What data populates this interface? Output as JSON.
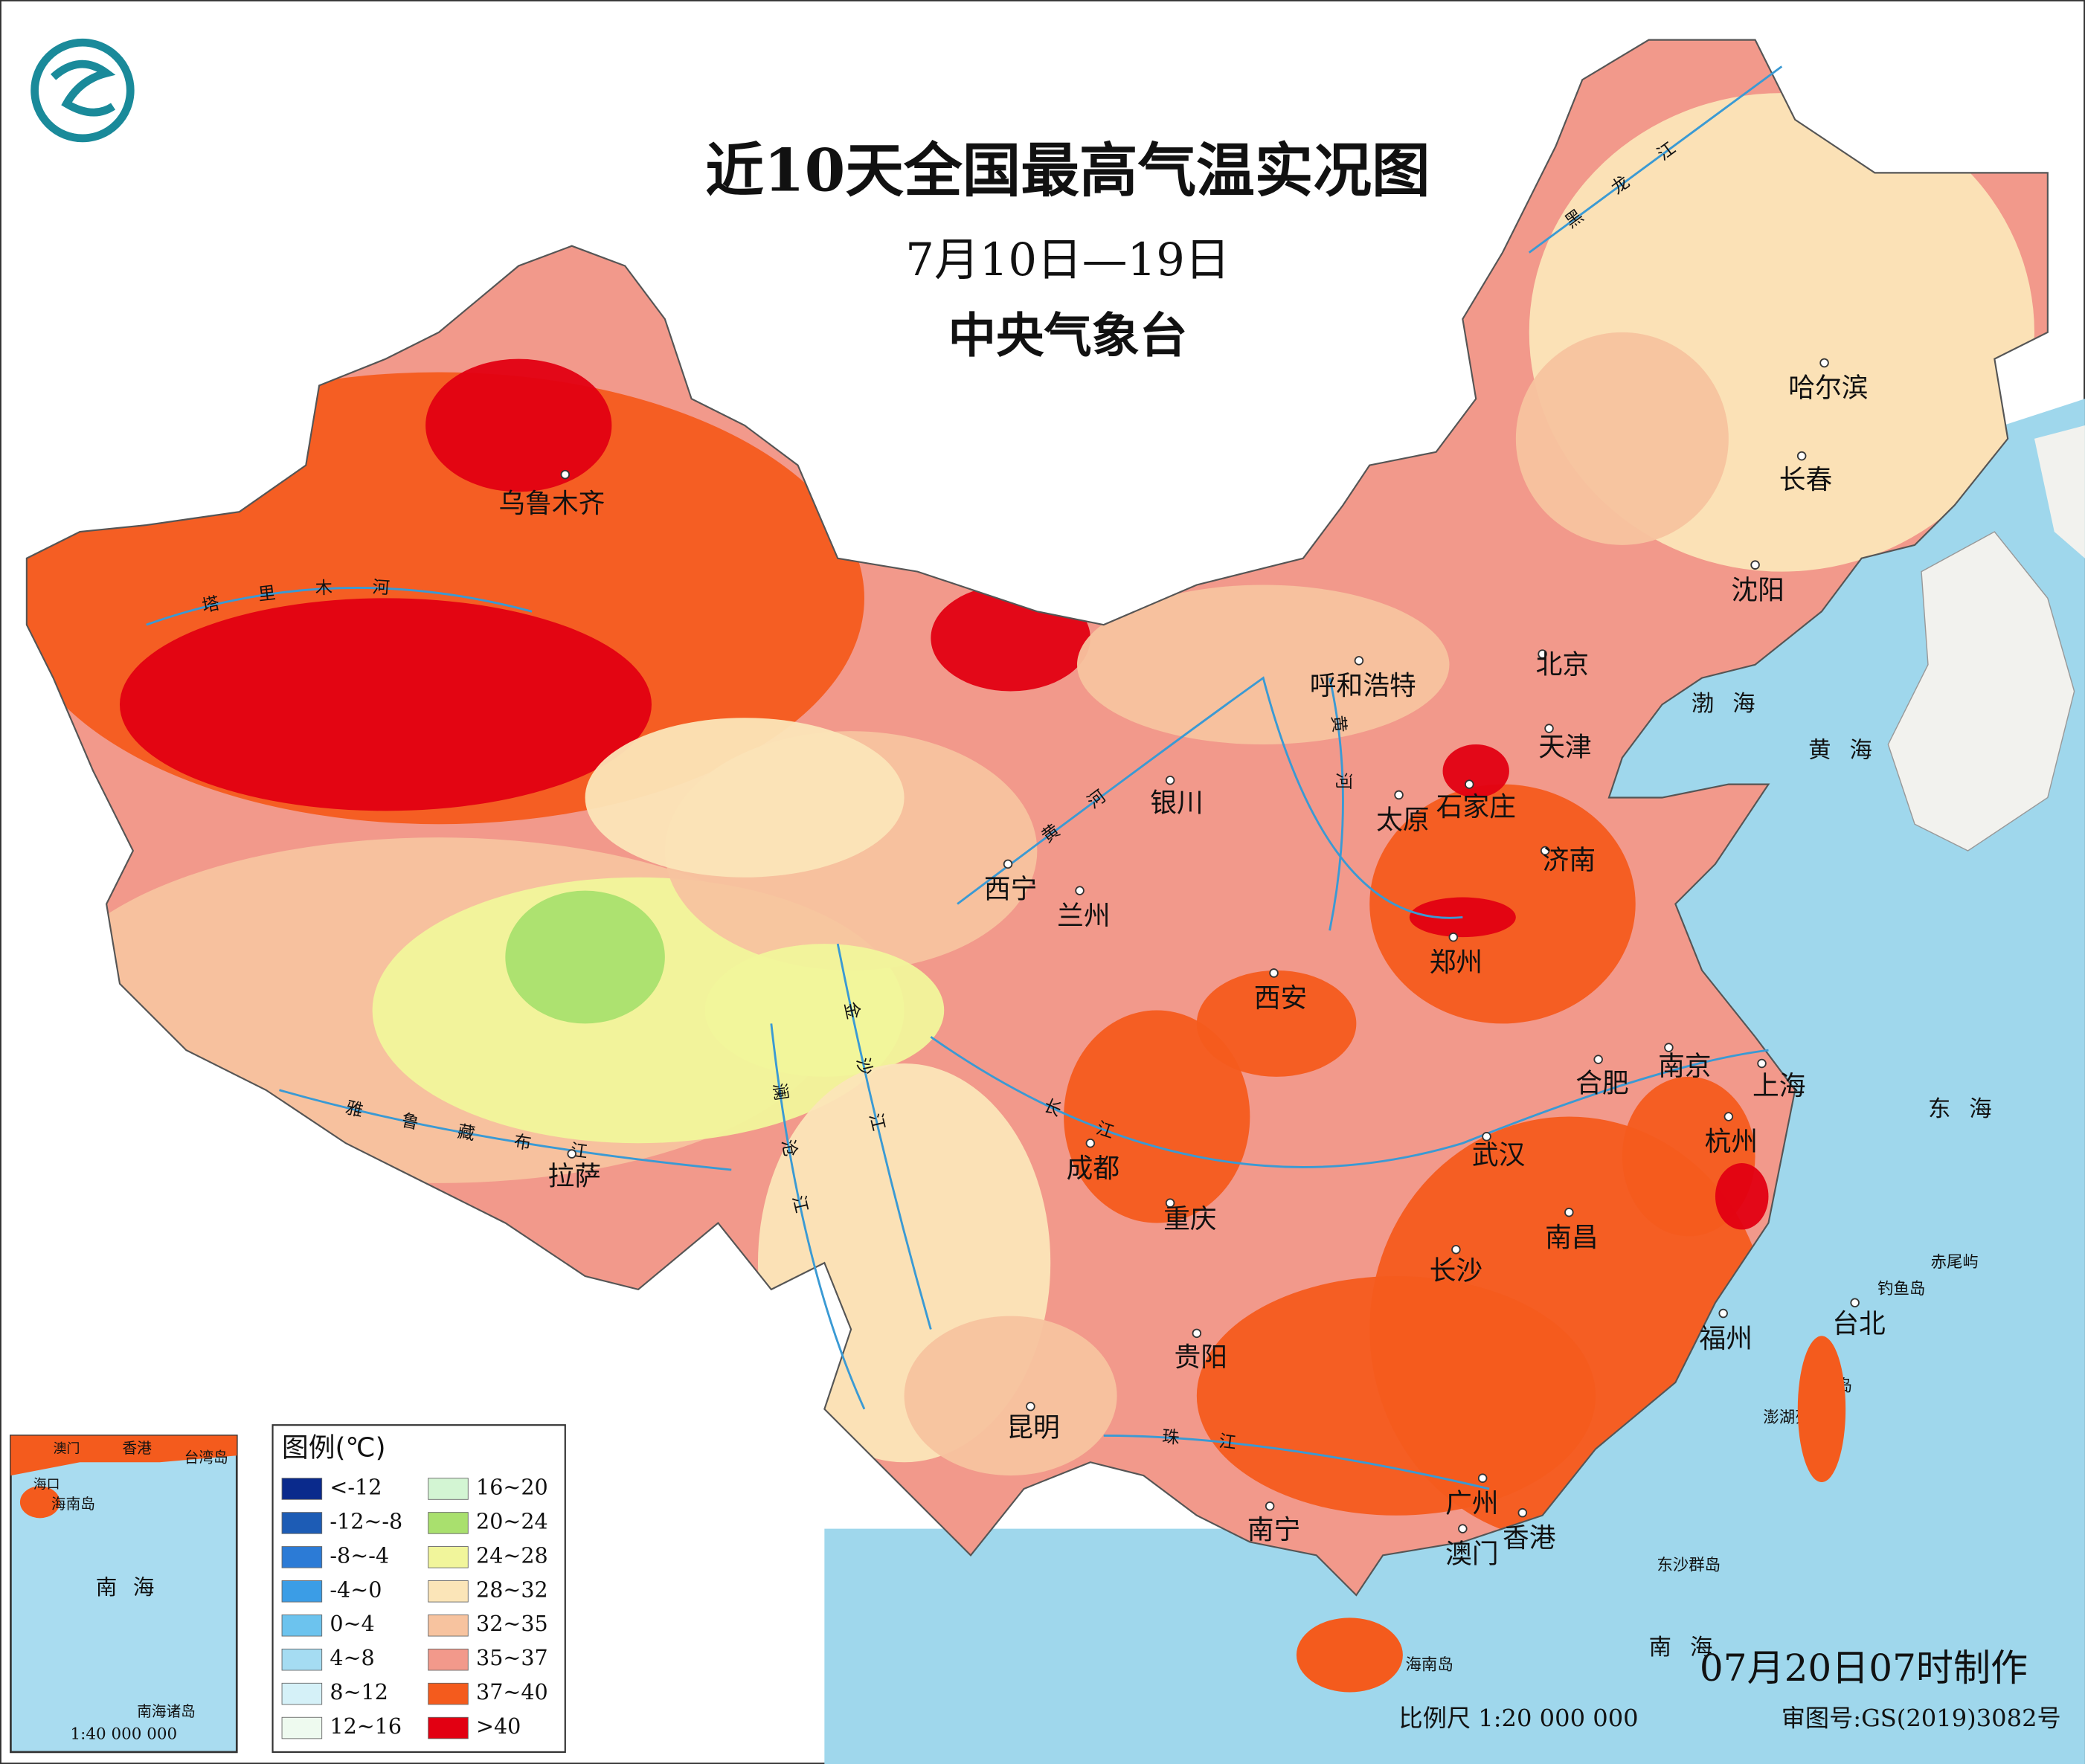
{
  "title": "近10天全国最高气温实况图",
  "subtitle": "7月10日—19日",
  "agency": "中央气象台",
  "cities": [
    "乌鲁木齐",
    "哈尔滨",
    "长春",
    "沈阳",
    "呼和浩特",
    "北京",
    "天津",
    "石家庄",
    "太原",
    "银川",
    "济南",
    "西宁",
    "兰州",
    "郑州",
    "西安",
    "合肥",
    "南京",
    "上海",
    "杭州",
    "武汉",
    "成都",
    "重庆",
    "拉萨",
    "南昌",
    "长沙",
    "福州",
    "台北",
    "贵阳",
    "昆明",
    "南宁",
    "广州",
    "香港",
    "澳门",
    "海口"
  ],
  "seas": [
    "渤海",
    "黄海",
    "东海",
    "南海"
  ],
  "islands": [
    "赤尾屿",
    "钓鱼岛",
    "台湾岛",
    "澎湖列岛",
    "东沙群岛",
    "海南岛"
  ],
  "rivers": [
    "塔里木河",
    "雅鲁藏布江",
    "黄河",
    "黄河",
    "长江",
    "金沙江",
    "澜沧江",
    "珠江",
    "黑龙江"
  ],
  "legend": {
    "title": "图例(℃)",
    "items": [
      {
        "label": "<-12",
        "color": "#0a2a8c"
      },
      {
        "label": "-12~-8",
        "color": "#1d5cb5"
      },
      {
        "label": "-8~-4",
        "color": "#2c7bd6"
      },
      {
        "label": "-4~0",
        "color": "#3b9de6"
      },
      {
        "label": "0~4",
        "color": "#6cc3ee"
      },
      {
        "label": "4~8",
        "color": "#a5dcf2"
      },
      {
        "label": "8~12",
        "color": "#d5f1f8"
      },
      {
        "label": "12~16",
        "color": "#eefaef"
      },
      {
        "label": "16~20",
        "color": "#d3f5d3"
      },
      {
        "label": "20~24",
        "color": "#a9e06e"
      },
      {
        "label": "24~28",
        "color": "#f1f59b"
      },
      {
        "label": "28~32",
        "color": "#fbe5b8"
      },
      {
        "label": "32~35",
        "color": "#f7c39f"
      },
      {
        "label": "35~37",
        "color": "#f2998b"
      },
      {
        "label": "37~40",
        "color": "#f45b1d"
      },
      {
        "label": ">40",
        "color": "#e20012"
      }
    ]
  },
  "scale": "比例尺 1:20 000 000",
  "approval": "审图号:GS(2019)3082号",
  "made": "07月20日07时制作",
  "inset": {
    "labels": [
      "香港",
      "台湾岛",
      "澳门",
      "海口",
      "海南岛",
      "南海",
      "南海诸岛"
    ],
    "scale": "1:40 000 000"
  }
}
